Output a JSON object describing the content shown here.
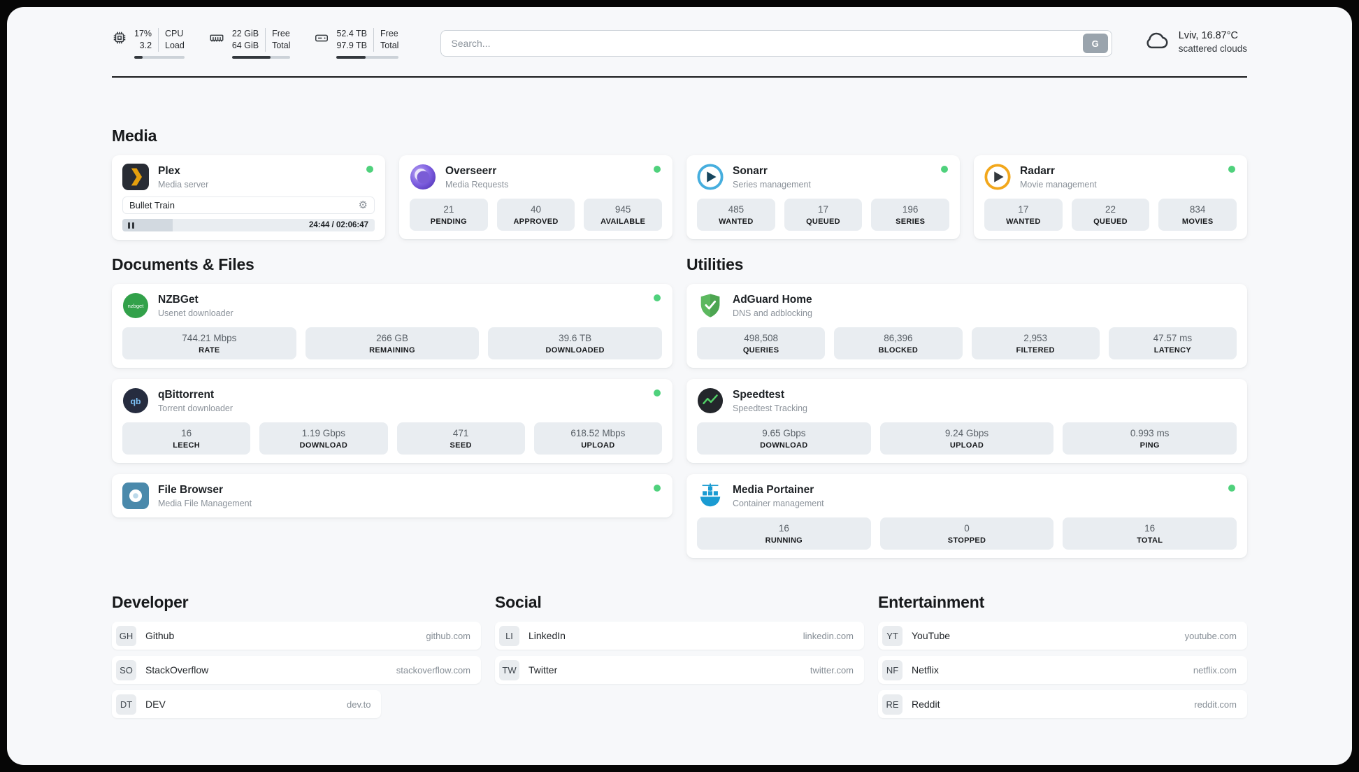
{
  "colors": {
    "status_online": "#4fd17c",
    "plex_accent": "#e5a00d"
  },
  "system": {
    "cpu": {
      "value_top": "17%",
      "value_bottom": "3.2",
      "label_top": "CPU",
      "label_bottom": "Load",
      "percent": 17
    },
    "memory": {
      "value_top": "22 GiB",
      "value_bottom": "64 GiB",
      "label_top": "Free",
      "label_bottom": "Total",
      "percent": 66
    },
    "storage": {
      "value_top": "52.4 TB",
      "value_bottom": "97.9 TB",
      "label_top": "Free",
      "label_bottom": "Total",
      "percent": 47
    }
  },
  "search": {
    "placeholder": "Search...",
    "button_label": "G"
  },
  "weather": {
    "location": "Lviv, 16.87°C",
    "condition": "scattered clouds"
  },
  "sections": {
    "media": "Media",
    "documents": "Documents & Files",
    "utilities": "Utilities",
    "developer": "Developer",
    "social": "Social",
    "entertainment": "Entertainment"
  },
  "apps": {
    "plex": {
      "name": "Plex",
      "subtitle": "Media server",
      "player": {
        "track": "Bullet Train",
        "time": "24:44 / 02:06:47",
        "progress_percent": 20
      }
    },
    "overseerr": {
      "name": "Overseerr",
      "subtitle": "Media Requests",
      "stats": [
        {
          "value": "21",
          "label": "PENDING"
        },
        {
          "value": "40",
          "label": "APPROVED"
        },
        {
          "value": "945",
          "label": "AVAILABLE"
        }
      ]
    },
    "sonarr": {
      "name": "Sonarr",
      "subtitle": "Series management",
      "stats": [
        {
          "value": "485",
          "label": "WANTED"
        },
        {
          "value": "17",
          "label": "QUEUED"
        },
        {
          "value": "196",
          "label": "SERIES"
        }
      ]
    },
    "radarr": {
      "name": "Radarr",
      "subtitle": "Movie management",
      "stats": [
        {
          "value": "17",
          "label": "WANTED"
        },
        {
          "value": "22",
          "label": "QUEUED"
        },
        {
          "value": "834",
          "label": "MOVIES"
        }
      ]
    },
    "nzbget": {
      "name": "NZBGet",
      "subtitle": "Usenet downloader",
      "stats": [
        {
          "value": "744.21 Mbps",
          "label": "RATE"
        },
        {
          "value": "266 GB",
          "label": "REMAINING"
        },
        {
          "value": "39.6 TB",
          "label": "DOWNLOADED"
        }
      ]
    },
    "qbittorrent": {
      "name": "qBittorrent",
      "subtitle": "Torrent downloader",
      "stats": [
        {
          "value": "16",
          "label": "LEECH"
        },
        {
          "value": "1.19 Gbps",
          "label": "DOWNLOAD"
        },
        {
          "value": "471",
          "label": "SEED"
        },
        {
          "value": "618.52 Mbps",
          "label": "UPLOAD"
        }
      ]
    },
    "filebrowser": {
      "name": "File Browser",
      "subtitle": "Media File Management"
    },
    "adguard": {
      "name": "AdGuard Home",
      "subtitle": "DNS and adblocking",
      "stats": [
        {
          "value": "498,508",
          "label": "QUERIES"
        },
        {
          "value": "86,396",
          "label": "BLOCKED"
        },
        {
          "value": "2,953",
          "label": "FILTERED"
        },
        {
          "value": "47.57 ms",
          "label": "LATENCY"
        }
      ]
    },
    "speedtest": {
      "name": "Speedtest",
      "subtitle": "Speedtest Tracking",
      "stats": [
        {
          "value": "9.65 Gbps",
          "label": "DOWNLOAD"
        },
        {
          "value": "9.24 Gbps",
          "label": "UPLOAD"
        },
        {
          "value": "0.993 ms",
          "label": "PING"
        }
      ]
    },
    "portainer": {
      "name": "Media Portainer",
      "subtitle": "Container management",
      "stats": [
        {
          "value": "16",
          "label": "RUNNING"
        },
        {
          "value": "0",
          "label": "STOPPED"
        },
        {
          "value": "16",
          "label": "TOTAL"
        }
      ]
    }
  },
  "icon_labels": {
    "nzbget": "nzbget",
    "qbittorrent": "qb"
  },
  "bookmarks": {
    "developer": [
      {
        "initials": "GH",
        "name": "Github",
        "url": "github.com"
      },
      {
        "initials": "SO",
        "name": "StackOverflow",
        "url": "stackoverflow.com"
      },
      {
        "initials": "DT",
        "name": "DEV",
        "url": "dev.to"
      }
    ],
    "social": [
      {
        "initials": "LI",
        "name": "LinkedIn",
        "url": "linkedin.com"
      },
      {
        "initials": "TW",
        "name": "Twitter",
        "url": "twitter.com"
      }
    ],
    "entertainment": [
      {
        "initials": "YT",
        "name": "YouTube",
        "url": "youtube.com"
      },
      {
        "initials": "NF",
        "name": "Netflix",
        "url": "netflix.com"
      },
      {
        "initials": "RE",
        "name": "Reddit",
        "url": "reddit.com"
      }
    ]
  }
}
